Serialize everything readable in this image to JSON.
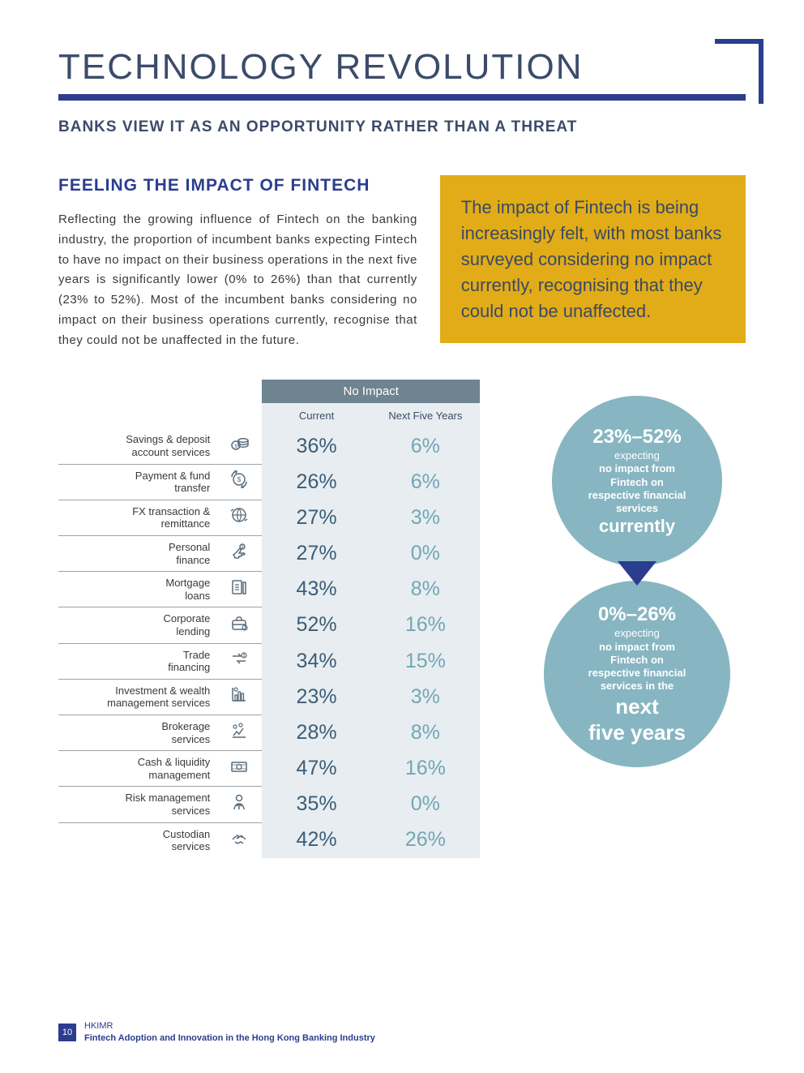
{
  "title": "TECHNOLOGY REVOLUTION",
  "subtitle": "BANKS VIEW IT AS AN OPPORTUNITY RATHER THAN A THREAT",
  "section_heading": "FEELING THE IMPACT OF FINTECH",
  "body_text": "Reflecting the growing influence of Fintech on the banking industry, the proportion of incumbent banks expecting Fintech to have no impact on their business operations in the next five years is significantly lower (0% to 26%) than that currently (23% to 52%). Most of the incumbent banks considering no impact on their business operations currently, recognise that they could not be unaffected in the future.",
  "callout_text": "The impact of Fintech is being increasingly felt, with most banks surveyed considering no impact currently, recognising that they could not be unaffected.",
  "table": {
    "header_span": "No Impact",
    "col1": "Current",
    "col2": "Next Five Years",
    "header_bg": "#6e8490",
    "cell_bg": "#e7edf0",
    "col1_color": "#3c5d78",
    "col2_color": "#72a6b6",
    "rows": [
      {
        "label": "Savings & deposit\naccount services",
        "icon": "coins",
        "current": "36%",
        "next": "6%"
      },
      {
        "label": "Payment & fund\ntransfer",
        "icon": "transfer",
        "current": "26%",
        "next": "6%"
      },
      {
        "label": "FX transaction &\nremittance",
        "icon": "fx",
        "current": "27%",
        "next": "3%"
      },
      {
        "label": "Personal\nfinance",
        "icon": "hand",
        "current": "27%",
        "next": "0%"
      },
      {
        "label": "Mortgage\nloans",
        "icon": "doc",
        "current": "43%",
        "next": "8%"
      },
      {
        "label": "Corporate\nlending",
        "icon": "brief",
        "current": "52%",
        "next": "16%"
      },
      {
        "label": "Trade\nfinancing",
        "icon": "arrows",
        "current": "34%",
        "next": "15%"
      },
      {
        "label": "Investment & wealth\nmanagement services",
        "icon": "chart",
        "current": "23%",
        "next": "3%"
      },
      {
        "label": "Brokerage\nservices",
        "icon": "growth",
        "current": "28%",
        "next": "8%"
      },
      {
        "label": "Cash & liquidity\nmanagement",
        "icon": "cash",
        "current": "47%",
        "next": "16%"
      },
      {
        "label": "Risk management\nservices",
        "icon": "person",
        "current": "35%",
        "next": "0%"
      },
      {
        "label": "Custodian\nservices",
        "icon": "hands",
        "current": "42%",
        "next": "26%"
      }
    ]
  },
  "circles": {
    "bg": "#87b6c2",
    "arrow_color": "#2b3d8f",
    "c1": {
      "range": "23%–52%",
      "l1": "expecting",
      "l2": "no impact from",
      "l3": "Fintech on",
      "l4": "respective financial",
      "l5": "services",
      "emph": "currently"
    },
    "c2": {
      "range": "0%–26%",
      "l1": "expecting",
      "l2": "no impact from",
      "l3": "Fintech on",
      "l4": "respective financial",
      "l5": "services in the",
      "emph1": "next",
      "emph2": "five years"
    }
  },
  "footer": {
    "page": "10",
    "org": "HKIMR",
    "title": "Fintech Adoption and Innovation in the Hong Kong Banking Industry"
  },
  "colors": {
    "accent": "#2b3d8f",
    "heading": "#3c4b6a",
    "callout_bg": "#e2ac18"
  }
}
